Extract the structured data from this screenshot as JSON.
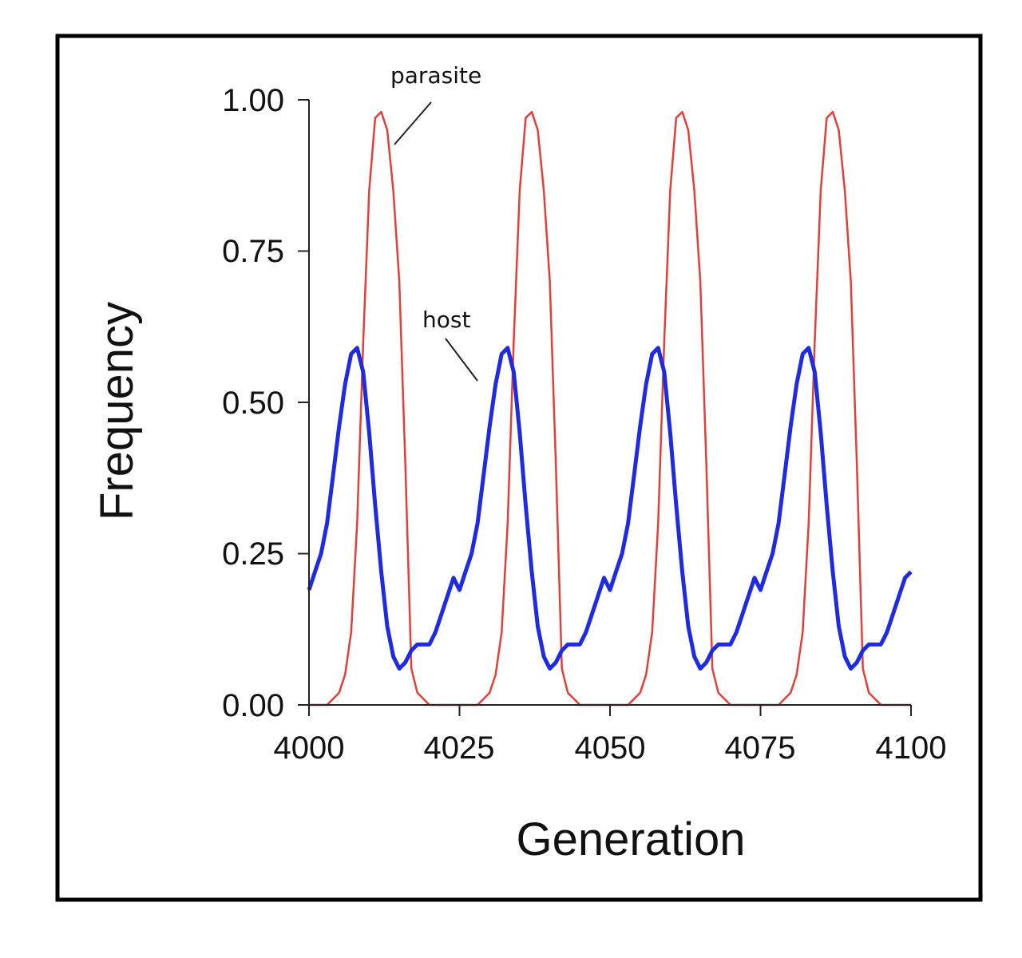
{
  "chart_data": {
    "type": "line",
    "title": "",
    "xlabel": "Generation",
    "ylabel": "Frequency",
    "xlim": [
      4000,
      4100
    ],
    "ylim": [
      0,
      1
    ],
    "xticks": [
      "4000",
      "4025",
      "4050",
      "4075",
      "4100"
    ],
    "yticks": [
      "0.00",
      "0.25",
      "0.50",
      "0.75",
      "1.00"
    ],
    "grid": false,
    "legend": "none (inline annotations)",
    "annotations": [
      {
        "text": "parasite",
        "series": "parasite"
      },
      {
        "text": "host",
        "series": "host"
      }
    ],
    "x_start": 4000,
    "x_step": 1,
    "series": [
      {
        "name": "parasite",
        "color": "#e0403a",
        "values": [
          0,
          0,
          0,
          0,
          0.01,
          0.02,
          0.05,
          0.12,
          0.3,
          0.6,
          0.85,
          0.97,
          0.98,
          0.95,
          0.85,
          0.7,
          0.4,
          0.06,
          0.02,
          0.01,
          0,
          0,
          0,
          0,
          0,
          0,
          0,
          0,
          0,
          0.01,
          0.02,
          0.05,
          0.12,
          0.3,
          0.6,
          0.85,
          0.97,
          0.98,
          0.95,
          0.85,
          0.7,
          0.4,
          0.06,
          0.02,
          0.01,
          0,
          0,
          0,
          0,
          0,
          0,
          0,
          0,
          0,
          0.01,
          0.02,
          0.05,
          0.12,
          0.3,
          0.6,
          0.85,
          0.97,
          0.98,
          0.95,
          0.85,
          0.7,
          0.4,
          0.06,
          0.02,
          0.01,
          0,
          0,
          0,
          0,
          0,
          0,
          0,
          0,
          0,
          0.01,
          0.02,
          0.05,
          0.12,
          0.3,
          0.6,
          0.85,
          0.97,
          0.98,
          0.95,
          0.85,
          0.7,
          0.4,
          0.06,
          0.02,
          0.01,
          0,
          0,
          0,
          0,
          0,
          0
        ]
      },
      {
        "name": "host",
        "color": "#1f2be0",
        "values": [
          0.19,
          0.22,
          0.25,
          0.3,
          0.38,
          0.46,
          0.53,
          0.58,
          0.59,
          0.55,
          0.45,
          0.33,
          0.22,
          0.13,
          0.08,
          0.06,
          0.07,
          0.09,
          0.1,
          0.1,
          0.1,
          0.12,
          0.15,
          0.18,
          0.21,
          0.19,
          0.22,
          0.25,
          0.3,
          0.38,
          0.46,
          0.53,
          0.58,
          0.59,
          0.55,
          0.45,
          0.33,
          0.22,
          0.13,
          0.08,
          0.06,
          0.07,
          0.09,
          0.1,
          0.1,
          0.1,
          0.12,
          0.15,
          0.18,
          0.21,
          0.19,
          0.22,
          0.25,
          0.3,
          0.38,
          0.46,
          0.53,
          0.58,
          0.59,
          0.55,
          0.45,
          0.33,
          0.22,
          0.13,
          0.08,
          0.06,
          0.07,
          0.09,
          0.1,
          0.1,
          0.1,
          0.12,
          0.15,
          0.18,
          0.21,
          0.19,
          0.22,
          0.25,
          0.3,
          0.38,
          0.46,
          0.53,
          0.58,
          0.59,
          0.55,
          0.45,
          0.33,
          0.22,
          0.13,
          0.08,
          0.06,
          0.07,
          0.09,
          0.1,
          0.1,
          0.1,
          0.12,
          0.15,
          0.18,
          0.21,
          0.22
        ]
      }
    ]
  }
}
